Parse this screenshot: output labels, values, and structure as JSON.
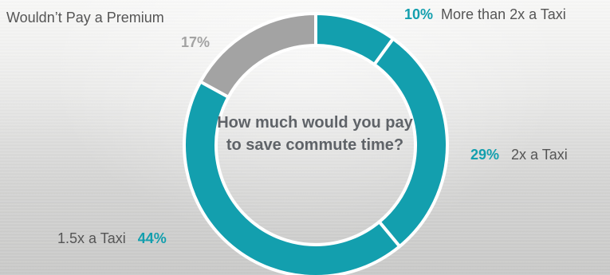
{
  "chart_data": {
    "type": "pie",
    "title": "How much would you pay to save commute time?",
    "slices": [
      {
        "label": "More than 2x a Taxi",
        "value": 10,
        "display": "10%",
        "color": "#139fae"
      },
      {
        "label": "2x a Taxi",
        "value": 29,
        "display": "29%",
        "color": "#139fae"
      },
      {
        "label": "1.5x a Taxi",
        "value": 44,
        "display": "44%",
        "color": "#139fae"
      },
      {
        "label": "Wouldn’t Pay a Premium",
        "value": 17,
        "display": "17%",
        "color": "#a3a3a3"
      }
    ],
    "legend": "none",
    "grid": false
  },
  "colors": {
    "accent": "#139fae",
    "muted": "#a3a3a3",
    "label_text": "#555555",
    "title_text": "#5f6368"
  }
}
